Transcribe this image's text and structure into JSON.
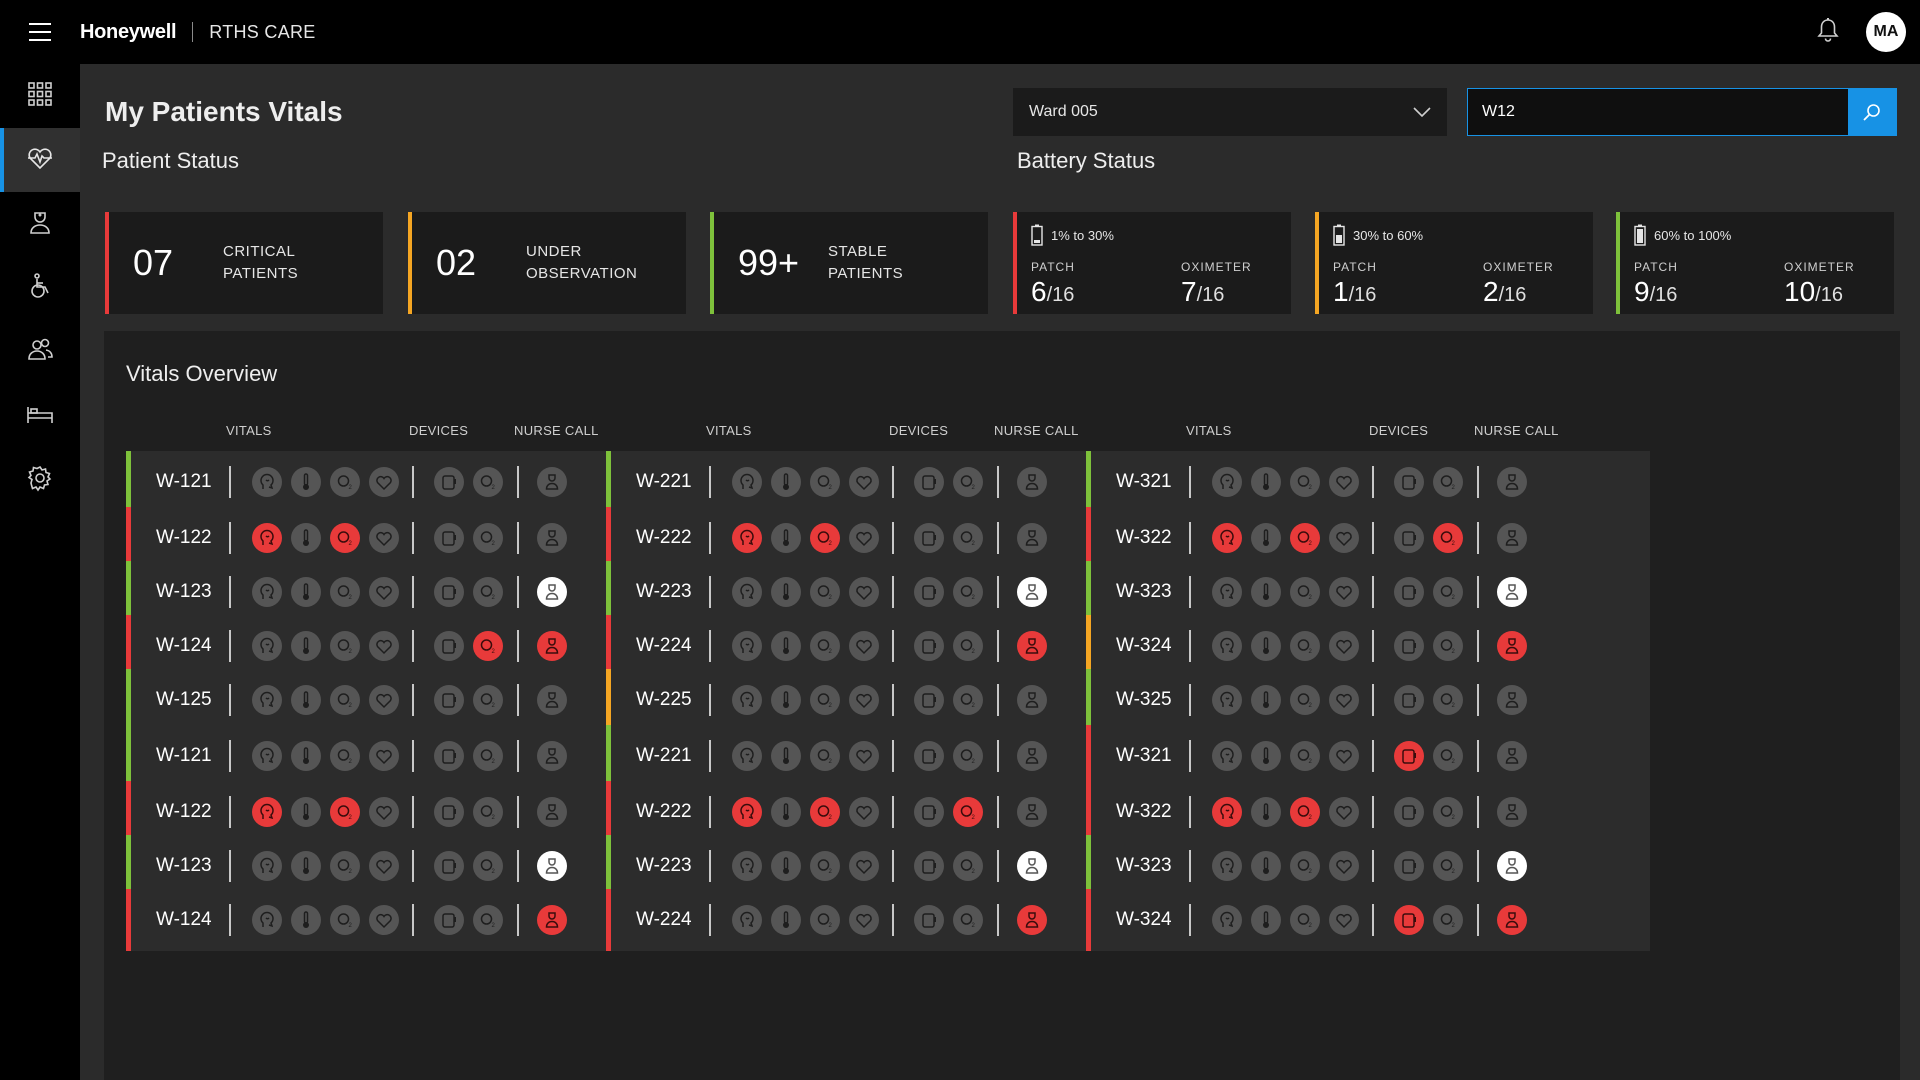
{
  "app": {
    "brand": "Honeywell",
    "name": "RTHS CARE",
    "user_initials": "MA"
  },
  "sidebar": {
    "items": [
      {
        "name": "dashboard",
        "icon": "grid-icon",
        "active": false
      },
      {
        "name": "vitals",
        "icon": "heart-pulse-icon",
        "active": true
      },
      {
        "name": "nurse",
        "icon": "nurse-icon",
        "active": false
      },
      {
        "name": "wheelchair",
        "icon": "wheelchair-icon",
        "active": false
      },
      {
        "name": "staff",
        "icon": "users-icon",
        "active": false
      },
      {
        "name": "beds",
        "icon": "bed-icon",
        "active": false
      },
      {
        "name": "settings",
        "icon": "gear-icon",
        "active": false
      }
    ]
  },
  "header": {
    "title": "My Patients Vitals",
    "ward": "Ward 005",
    "search_value": "W12"
  },
  "patient_status": {
    "title": "Patient Status",
    "cards": [
      {
        "number": "07",
        "line1": "CRITICAL",
        "line2": "PATIENTS",
        "color": "#e83a3a"
      },
      {
        "number": "02",
        "line1": "UNDER",
        "line2": "OBSERVATION",
        "color": "#f5a623"
      },
      {
        "number": "99+",
        "line1": "STABLE",
        "line2": "PATIENTS",
        "color": "#7ec13b"
      }
    ]
  },
  "battery_status": {
    "title": "Battery Status",
    "patch_label": "PATCH",
    "oximeter_label": "OXIMETER",
    "cards": [
      {
        "range": "1% to 30%",
        "patch": "6",
        "patch_total": "/16",
        "oxi": "7",
        "oxi_total": "/16",
        "color": "#e83a3a",
        "level": 0.2
      },
      {
        "range": "30% to 60%",
        "patch": "1",
        "patch_total": "/16",
        "oxi": "2",
        "oxi_total": "/16",
        "color": "#f5a623",
        "level": 0.5
      },
      {
        "range": "60% to 100%",
        "patch": "9",
        "patch_total": "/16",
        "oxi": "10",
        "oxi_total": "/16",
        "color": "#7ec13b",
        "level": 0.9
      }
    ]
  },
  "overview": {
    "title": "Vitals Overview",
    "headers": {
      "vitals": "VITALS",
      "devices": "DEVICES",
      "nurse_call": "NURSE CALL"
    },
    "icon_names": [
      "respiration-icon",
      "temperature-icon",
      "spo2-icon",
      "heart-rate-icon",
      "patch-device-icon",
      "oximeter-device-icon",
      "nurse-call-icon"
    ],
    "columns": [
      {
        "rows": [
          {
            "id": "W-121",
            "status": "g",
            "ic": "nnnnnnn"
          },
          {
            "id": "W-122",
            "status": "r",
            "ic": "rnrnnnn"
          },
          {
            "id": "W-123",
            "status": "g",
            "ic": "nnnnnnw"
          },
          {
            "id": "W-124",
            "status": "r",
            "ic": "nnnnnrr"
          },
          {
            "id": "W-125",
            "status": "g",
            "ic": "nnnnnnn"
          },
          {
            "id": "W-121",
            "status": "g",
            "ic": "nnnnnnn"
          },
          {
            "id": "W-122",
            "status": "r",
            "ic": "rnrnnnn"
          },
          {
            "id": "W-123",
            "status": "g",
            "ic": "nnnnnnw"
          },
          {
            "id": "W-124",
            "status": "r",
            "ic": "nnnnnnr"
          }
        ]
      },
      {
        "rows": [
          {
            "id": "W-221",
            "status": "g",
            "ic": "nnnnnnn"
          },
          {
            "id": "W-222",
            "status": "r",
            "ic": "rnrnnnn"
          },
          {
            "id": "W-223",
            "status": "g",
            "ic": "nnnnnnw"
          },
          {
            "id": "W-224",
            "status": "r",
            "ic": "nnnnnnr"
          },
          {
            "id": "W-225",
            "status": "o",
            "ic": "nnnnnnn"
          },
          {
            "id": "W-221",
            "status": "g",
            "ic": "nnnnnnn"
          },
          {
            "id": "W-222",
            "status": "r",
            "ic": "rnrnnrn"
          },
          {
            "id": "W-223",
            "status": "g",
            "ic": "nnnnnnw"
          },
          {
            "id": "W-224",
            "status": "r",
            "ic": "nnnnnnr"
          }
        ]
      },
      {
        "rows": [
          {
            "id": "W-321",
            "status": "g",
            "ic": "nnnnnnn"
          },
          {
            "id": "W-322",
            "status": "r",
            "ic": "rnrnnrn"
          },
          {
            "id": "W-323",
            "status": "g",
            "ic": "nnnnnnw"
          },
          {
            "id": "W-324",
            "status": "o",
            "ic": "nnnnnnr"
          },
          {
            "id": "W-325",
            "status": "g",
            "ic": "nnnnnnn"
          },
          {
            "id": "W-321",
            "status": "r",
            "ic": "nnnnrnn"
          },
          {
            "id": "W-322",
            "status": "r",
            "ic": "rnrnnnn"
          },
          {
            "id": "W-323",
            "status": "g",
            "ic": "nnnnnnw"
          },
          {
            "id": "W-324",
            "status": "r",
            "ic": "nnnnrnr"
          }
        ]
      }
    ]
  },
  "colors": {
    "accent": "#1792e5",
    "critical": "#e83a3a",
    "warning": "#f5a623",
    "stable": "#7ec13b"
  }
}
